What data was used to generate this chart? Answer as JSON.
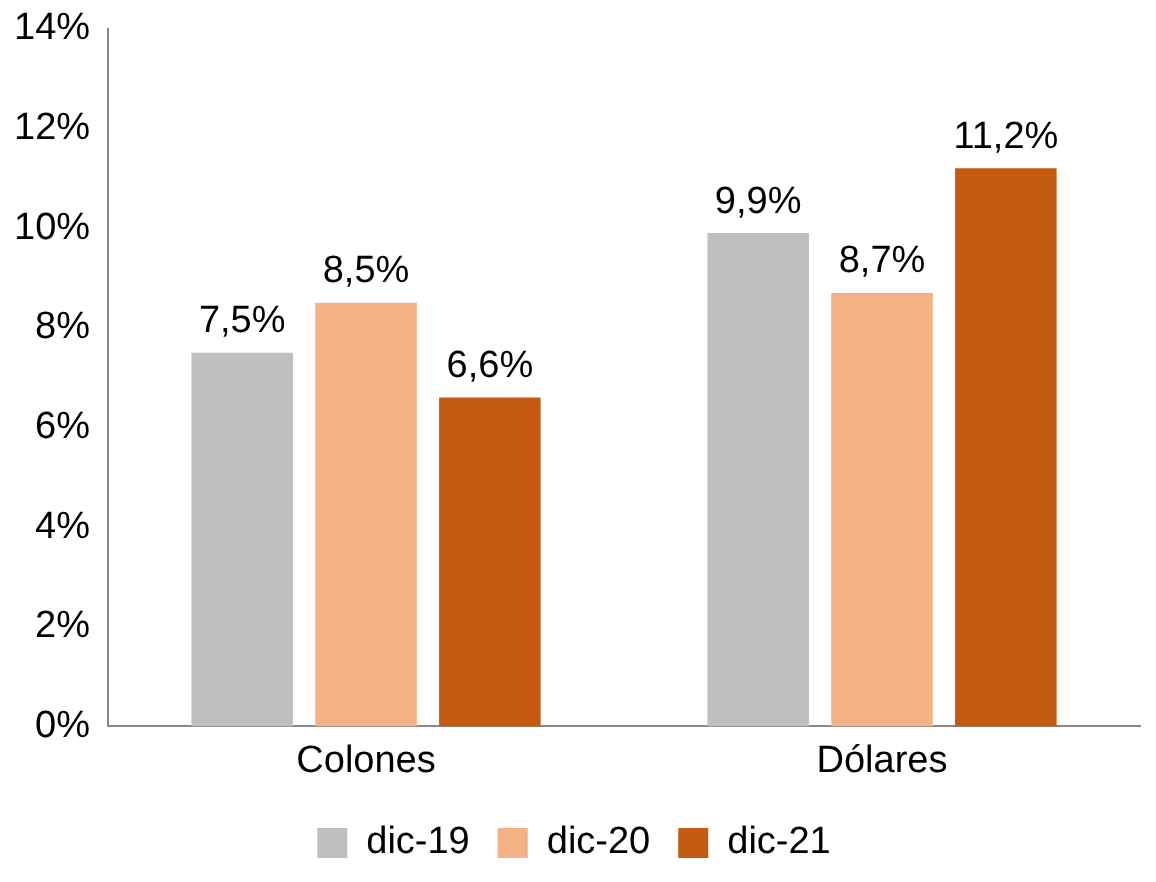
{
  "chart_data": {
    "type": "bar",
    "categories": [
      "Colones",
      "Dólares"
    ],
    "series": [
      {
        "name": "dic-19",
        "color": "#bfbfbf",
        "values": [
          7.5,
          9.9
        ],
        "value_labels": [
          "7,5%",
          "9,9%"
        ]
      },
      {
        "name": "dic-20",
        "color": "#f4b183",
        "values": [
          8.5,
          8.7
        ],
        "value_labels": [
          "8,5%",
          "8,7%"
        ]
      },
      {
        "name": "dic-21",
        "color": "#c55a11",
        "values": [
          6.6,
          11.2
        ],
        "value_labels": [
          "6,6%",
          "11,2%"
        ]
      }
    ],
    "ylim": [
      0,
      14
    ],
    "yticks": [
      {
        "value": 0,
        "label": "0%"
      },
      {
        "value": 2,
        "label": "2%"
      },
      {
        "value": 4,
        "label": "4%"
      },
      {
        "value": 6,
        "label": "6%"
      },
      {
        "value": 8,
        "label": "8%"
      },
      {
        "value": 10,
        "label": "10%"
      },
      {
        "value": 12,
        "label": "12%"
      },
      {
        "value": 14,
        "label": "14%"
      }
    ],
    "grid": false,
    "legend": "bottom"
  }
}
